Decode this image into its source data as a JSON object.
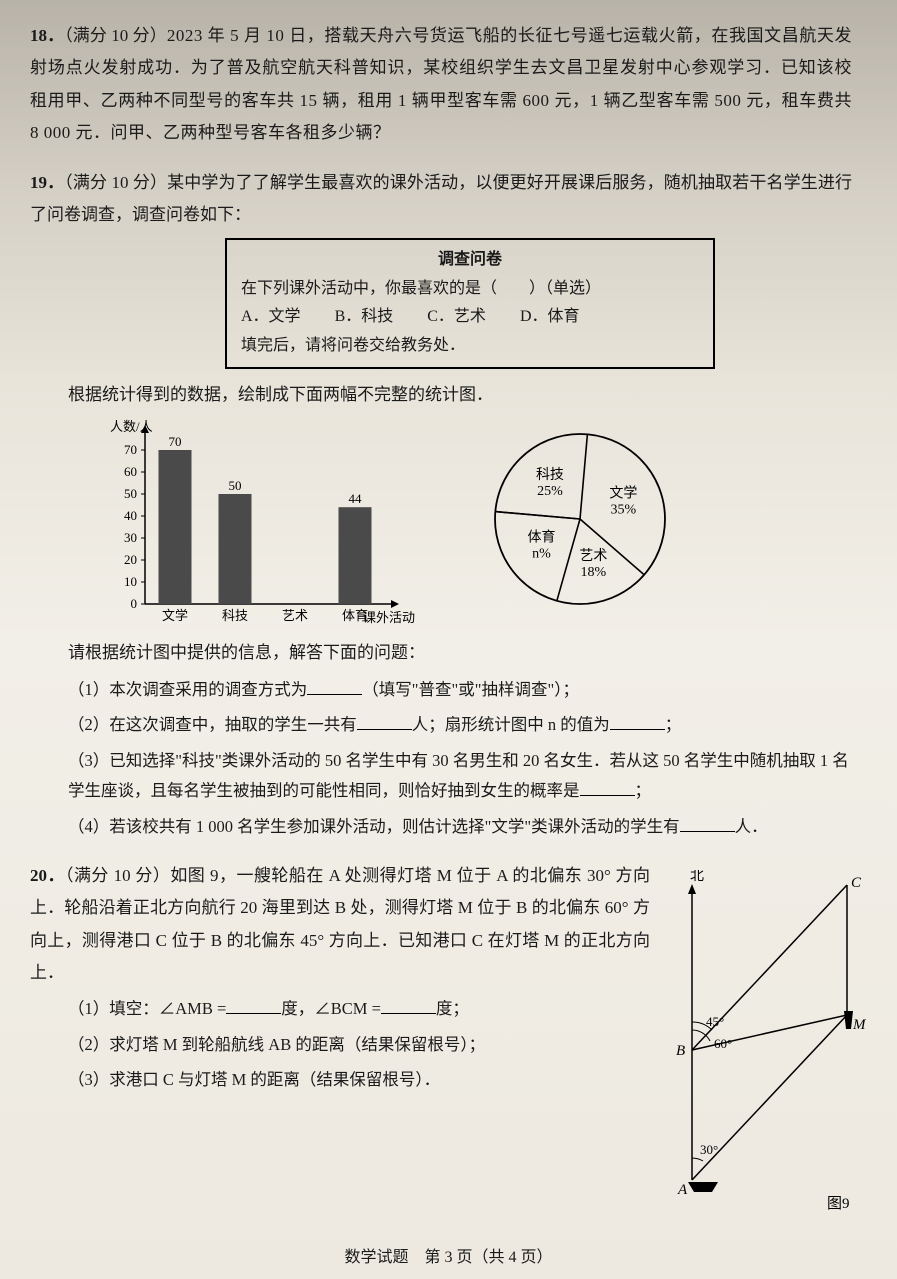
{
  "q18": {
    "num": "18．",
    "prefix": "（满分 10 分）",
    "text": "2023 年 5 月 10 日，搭载天舟六号货运飞船的长征七号遥七运载火箭，在我国文昌航天发射场点火发射成功．为了普及航空航天科普知识，某校组织学生去文昌卫星发射中心参观学习．已知该校租用甲、乙两种不同型号的客车共 15 辆，租用 1 辆甲型客车需 600 元，1 辆乙型客车需 500 元，租车费共 8 000 元．问甲、乙两种型号客车各租多少辆？"
  },
  "q19": {
    "num": "19．",
    "prefix": "（满分 10 分）",
    "intro": "某中学为了了解学生最喜欢的课外活动，以便更好开展课后服务，随机抽取若干名学生进行了问卷调查，调查问卷如下：",
    "box": {
      "title": "调查问卷",
      "line1": "在下列课外活动中，你最喜欢的是（　　）（单选）",
      "optA": "A．文学",
      "optB": "B．科技",
      "optC": "C．艺术",
      "optD": "D．体育",
      "line3": "填完后，请将问卷交给教务处．"
    },
    "mid": "根据统计得到的数据，绘制成下面两幅不完整的统计图．",
    "bar": {
      "type": "bar",
      "ylabel": "人数/人",
      "xlabel": "课外活动",
      "categories": [
        "文学",
        "科技",
        "艺术",
        "体育"
      ],
      "values": [
        70,
        50,
        null,
        44
      ],
      "value_labels": [
        "70",
        "50",
        "",
        "44"
      ],
      "yticks": [
        0,
        10,
        20,
        30,
        40,
        50,
        60,
        70
      ],
      "ylim": [
        0,
        75
      ],
      "bar_color": "#4a4a4a",
      "bar_width": 0.55,
      "axis_color": "#000000",
      "label_fontsize": 13
    },
    "pie": {
      "type": "pie",
      "slices": [
        {
          "label": "科技",
          "pct_text": "25%",
          "value": 25
        },
        {
          "label": "体育",
          "pct_text": "n%",
          "value": 22
        },
        {
          "label": "艺术",
          "pct_text": "18%",
          "value": 18
        },
        {
          "label": "文学",
          "pct_text": "35%",
          "value": 35
        }
      ],
      "stroke": "#000000",
      "fill": "none",
      "label_fontsize": 14
    },
    "after_charts": "请根据统计图中提供的信息，解答下面的问题：",
    "sub1_a": "（1）本次调查采用的调查方式为",
    "sub1_b": "（填写\"普查\"或\"抽样调查\"）；",
    "sub2_a": "（2）在这次调查中，抽取的学生一共有",
    "sub2_b": "人；扇形统计图中 n 的值为",
    "sub2_c": "；",
    "sub3": "（3）已知选择\"科技\"类课外活动的 50 名学生中有 30 名男生和 20 名女生．若从这 50 名学生中随机抽取 1 名学生座谈，且每名学生被抽到的可能性相同，则恰好抽到女生的概率是",
    "sub3_end": "；",
    "sub4_a": "（4）若该校共有 1 000 名学生参加课外活动，则估计选择\"文学\"类课外活动的学生有",
    "sub4_b": "人．"
  },
  "q20": {
    "num": "20．",
    "prefix": "（满分 10 分）",
    "text": "如图 9，一艘轮船在 A 处测得灯塔 M 位于 A 的北偏东 30° 方向上．轮船沿着正北方向航行 20 海里到达 B 处，测得灯塔 M 位于 B 的北偏东 60° 方向上，测得港口 C 位于 B 的北偏东 45° 方向上．已知港口 C 在灯塔 M 的正北方向上．",
    "sub1_a": "（1）填空：∠AMB =",
    "sub1_b": "度，∠BCM =",
    "sub1_c": "度；",
    "sub2": "（2）求灯塔 M 到轮船航线 AB 的距离（结果保留根号）；",
    "sub3": "（3）求港口 C 与灯塔 M 的距离（结果保留根号）．",
    "fig": {
      "labels": {
        "north": "北",
        "A": "A",
        "B": "B",
        "C": "C",
        "M": "M",
        "caption": "图9"
      },
      "angles": {
        "at_A": "30°",
        "at_B_60": "60°",
        "at_B_45": "45°"
      },
      "points": {
        "A": [
          20,
          310
        ],
        "B": [
          20,
          180
        ],
        "M": [
          175,
          145
        ],
        "C": [
          175,
          15
        ],
        "N_top": [
          20,
          20
        ]
      },
      "stroke": "#000000"
    }
  },
  "footer": "数学试题　第 3 页（共 4 页）"
}
